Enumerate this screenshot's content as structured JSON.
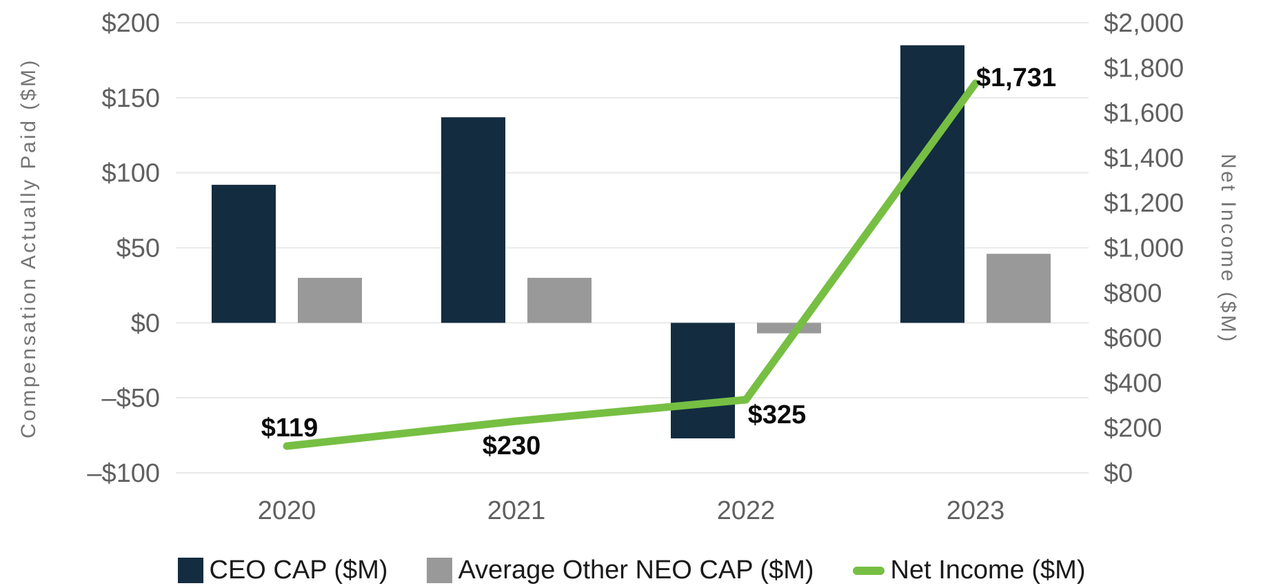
{
  "chart_data": {
    "type": "bar+line",
    "categories": [
      "2020",
      "2021",
      "2022",
      "2023"
    ],
    "series": [
      {
        "name": "CEO CAP ($M)",
        "type": "bar",
        "axis": "left",
        "color": "#132c40",
        "values": [
          92,
          137,
          -77,
          185
        ]
      },
      {
        "name": "Average Other NEO CAP ($M)",
        "type": "bar",
        "axis": "left",
        "color": "#999999",
        "values": [
          30,
          30,
          -7,
          46
        ]
      },
      {
        "name": "Net Income ($M)",
        "type": "line",
        "axis": "right",
        "color": "#76bf43",
        "values": [
          119,
          230,
          325,
          1731
        ],
        "data_labels": [
          "$119",
          "$230",
          "$325",
          "$1,731"
        ]
      }
    ],
    "left_axis": {
      "title": "Compensation Actually Paid ($M)",
      "min": -100,
      "max": 200,
      "tick_step": 50,
      "tick_labels": [
        "$200",
        "$150",
        "$100",
        "$50",
        "$0",
        "–$50",
        "–$100"
      ]
    },
    "right_axis": {
      "title": "Net Income ($M)",
      "min": 0,
      "max": 2000,
      "tick_step": 200,
      "tick_labels": [
        "$2,000",
        "$1,800",
        "$1,600",
        "$1,400",
        "$1,200",
        "$1,000",
        "$800",
        "$600",
        "$400",
        "$200",
        "$0"
      ]
    },
    "grid": true,
    "legend_position": "bottom",
    "colors": {
      "background": "#ffffff",
      "gridline": "#e8e8e8",
      "tick_text": "#606060",
      "axis_title_text": "#757575",
      "data_label_text": "#0a0a0a",
      "legend_text": "#1a1a1a"
    }
  }
}
